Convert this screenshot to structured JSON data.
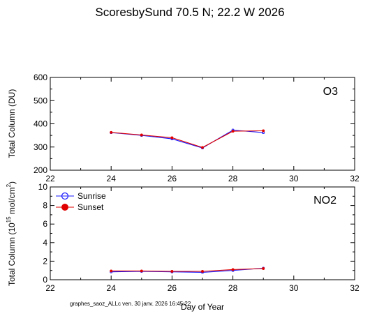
{
  "title": "ScoresbySund  70.5 N; 22.2 W    2026",
  "footer": "graphes_saoz_ALLc   ven. 30 janv. 2026 16:45:22",
  "colors": {
    "sunrise": "#1a1aff",
    "sunset": "#e00000",
    "axis": "#000000"
  },
  "chart_data": [
    {
      "type": "line",
      "panel_label": "O3",
      "ylabel": "Total Column  (DU)",
      "xlabel": "",
      "xlim": [
        22,
        32
      ],
      "ylim": [
        200,
        600
      ],
      "xticks": [
        22,
        24,
        26,
        28,
        30,
        32
      ],
      "yticks": [
        200,
        300,
        400,
        500,
        600
      ],
      "series": [
        {
          "name": "Sunrise",
          "x": [
            24,
            25,
            26,
            27,
            28,
            29
          ],
          "y": [
            362,
            350,
            335,
            296,
            373,
            362
          ]
        },
        {
          "name": "Sunset",
          "x": [
            24,
            25,
            26,
            27,
            28,
            29
          ],
          "y": [
            363,
            352,
            340,
            298,
            368,
            370
          ]
        }
      ]
    },
    {
      "type": "line",
      "panel_label": "NO2",
      "ylabel_main": "Total Column (10",
      "ylabel_exp": "15",
      "ylabel_tail": " mol/cm",
      "ylabel_sq": "2",
      "ylabel_close": ")",
      "xlabel": "Day of Year",
      "xlim": [
        22,
        32
      ],
      "ylim": [
        0,
        10
      ],
      "xticks": [
        22,
        24,
        26,
        28,
        30,
        32
      ],
      "yticks": [
        0,
        2,
        4,
        6,
        8,
        10
      ],
      "legend": {
        "position": "top-left",
        "entries": [
          "Sunrise",
          "Sunset"
        ]
      },
      "series": [
        {
          "name": "Sunrise",
          "x": [
            24,
            25,
            26,
            27,
            28,
            29
          ],
          "y": [
            0.85,
            0.9,
            0.85,
            0.8,
            1.0,
            1.25
          ]
        },
        {
          "name": "Sunset",
          "x": [
            24,
            25,
            26,
            27,
            28,
            29
          ],
          "y": [
            0.95,
            0.95,
            0.9,
            0.9,
            1.1,
            1.2
          ]
        }
      ]
    }
  ]
}
